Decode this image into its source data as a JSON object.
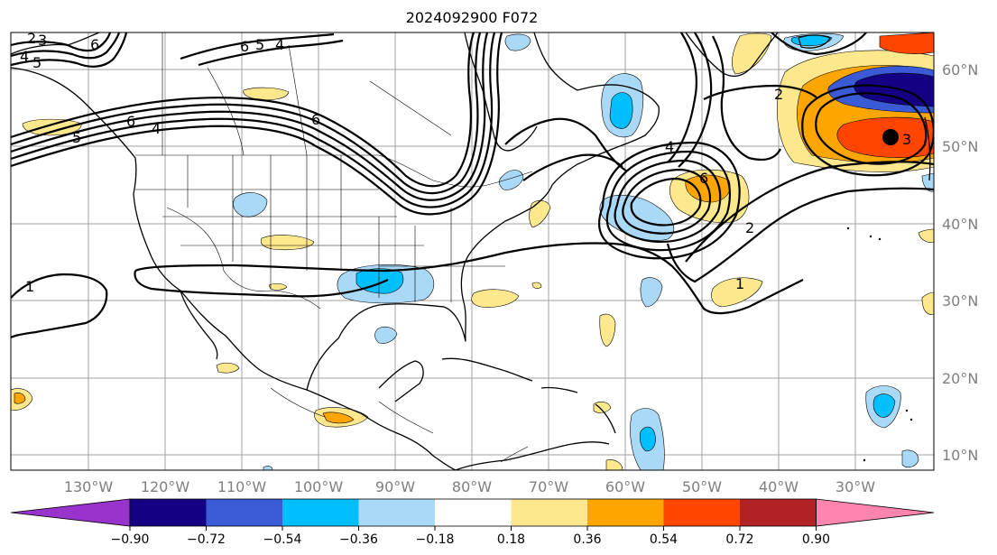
{
  "title": "2024092900 F072",
  "map": {
    "lat_labels": [
      "60°N",
      "50°N",
      "40°N",
      "30°N",
      "20°N",
      "10°N"
    ],
    "lon_labels": [
      "130°W",
      "120°W",
      "110°W",
      "100°W",
      "90°W",
      "80°W",
      "70°W",
      "60°W",
      "50°W",
      "40°W",
      "30°W"
    ],
    "contour_labels": [
      "2",
      "3",
      "4",
      "5",
      "6",
      "4",
      "5",
      "6",
      "6",
      "5",
      "4",
      "6",
      "4",
      "2",
      "6",
      "2",
      "1",
      "1",
      "3"
    ],
    "marker": "black-dot",
    "fill_colors": {
      "neg_090": "#140082",
      "neg_072": "#3b5bd6",
      "neg_054": "#00bfff",
      "neg_036": "#aad9f7",
      "pos_018": "#fde88d",
      "pos_036": "#ffa500",
      "pos_054": "#ff4500",
      "pos_072": "#b22222",
      "pos_090": "#ff85b0"
    }
  },
  "colorbar": {
    "labels": [
      "−0.90",
      "−0.72",
      "−0.54",
      "−0.36",
      "−0.18",
      "0.18",
      "0.36",
      "0.54",
      "0.72",
      "0.90"
    ],
    "colors": [
      "#9933cc",
      "#140082",
      "#3b5bd6",
      "#00bfff",
      "#aad9f7",
      "#ffffff",
      "#fde88d",
      "#ffa500",
      "#ff4500",
      "#b22222",
      "#ff85b0"
    ]
  }
}
